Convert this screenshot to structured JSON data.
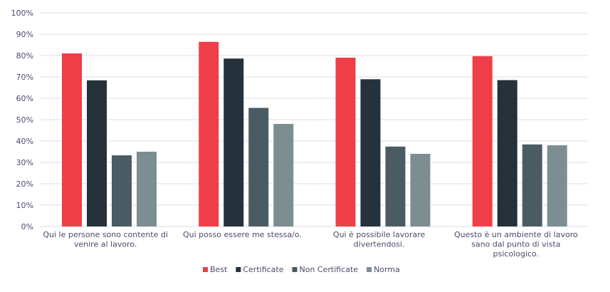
{
  "chart_data": {
    "type": "bar",
    "title": "",
    "xlabel": "",
    "ylabel": "",
    "ylim": [
      0,
      100
    ],
    "yticks": [
      "0%",
      "10%",
      "20%",
      "30%",
      "40%",
      "50%",
      "60%",
      "70%",
      "80%",
      "90%",
      "100%"
    ],
    "grid": true,
    "legend_position": "bottom",
    "categories": [
      [
        "Qui le persone sono contente di",
        "venire al lavoro."
      ],
      [
        "Qui posso essere me stessa/o."
      ],
      [
        "Qui è possibile lavorare",
        "divertendosi."
      ],
      [
        "Questo è un ambiente di lavoro",
        "sano dal punto di vista",
        "psicologico."
      ]
    ],
    "series": [
      {
        "name": "Best",
        "color": "#EF3E48",
        "values": [
          81,
          86.4,
          79,
          79.7
        ]
      },
      {
        "name": "Certificate",
        "color": "#25313B",
        "values": [
          68.4,
          78.6,
          68.9,
          68.5
        ]
      },
      {
        "name": "Non Certificate",
        "color": "#4B5B64",
        "values": [
          33.3,
          55.5,
          37.4,
          38.4
        ]
      },
      {
        "name": "Norma",
        "color": "#7D8E93",
        "values": [
          35,
          48,
          34,
          38
        ]
      }
    ]
  }
}
